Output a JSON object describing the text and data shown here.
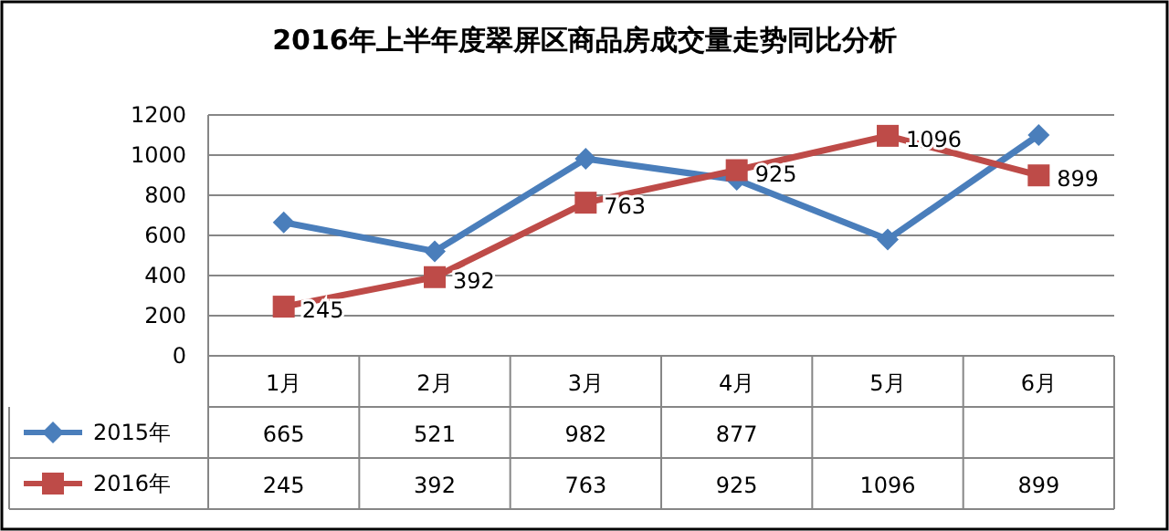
{
  "chart_data": {
    "type": "line",
    "title": "2016年上半年度翠屏区商品房成交量走势同比分析",
    "categories": [
      "1月",
      "2月",
      "3月",
      "4月",
      "5月",
      "6月"
    ],
    "series": [
      {
        "name": "2015年",
        "color": "#4a7ebb",
        "marker": "diamond",
        "values": [
          665,
          521,
          982,
          877,
          580,
          1100
        ],
        "value_labels": [
          "665",
          "521",
          "982",
          "877",
          null,
          null
        ]
      },
      {
        "name": "2016年",
        "color": "#be4b48",
        "marker": "square",
        "values": [
          245,
          392,
          763,
          925,
          1096,
          899
        ],
        "value_labels": [
          "245",
          "392",
          "763",
          "925",
          "1096",
          "899"
        ],
        "data_labels": true
      }
    ],
    "ylim": [
      0,
      1200
    ],
    "yticks": [
      0,
      200,
      400,
      600,
      800,
      1000,
      1200
    ],
    "grid": "y",
    "legend": "bottom left"
  }
}
